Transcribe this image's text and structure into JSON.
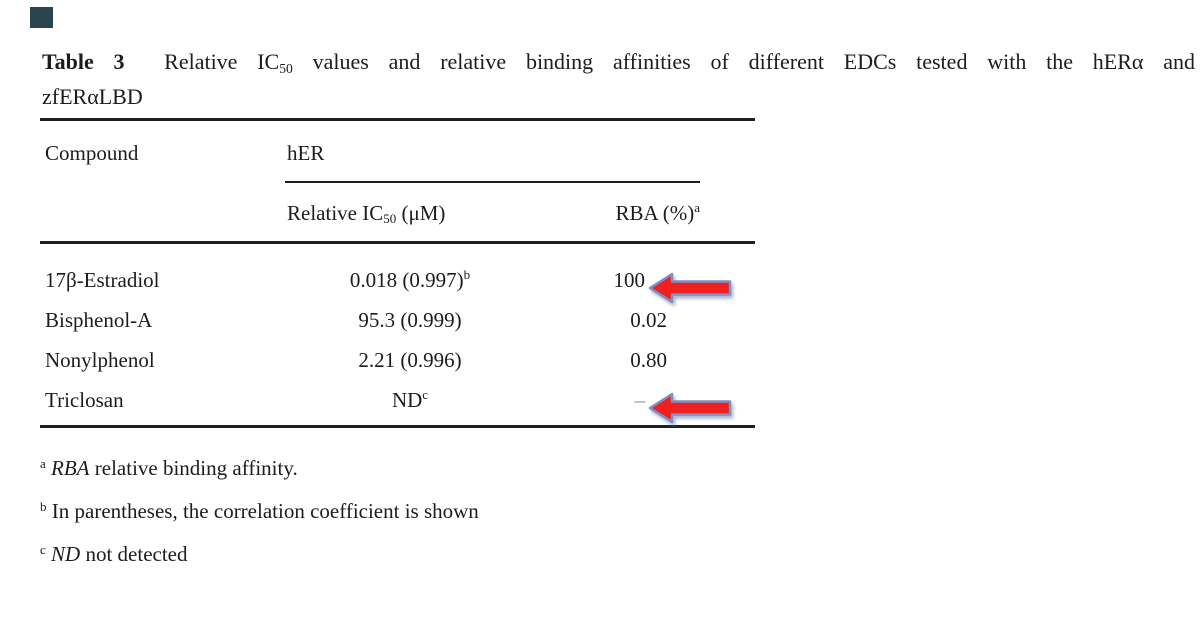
{
  "page": {
    "background": "#ffffff",
    "corner_mark_color": "#2a454d",
    "text_color": "#1c1c1e",
    "rule_color": "#1f1f1f"
  },
  "title": {
    "line1_segments": [
      {
        "t": "Table 3",
        "b": true
      },
      {
        "t": "  Relative IC"
      },
      {
        "t": "50",
        "sub": true
      },
      {
        "t": " values and relative binding affinities of different EDCs tested with the hERα and"
      }
    ],
    "line2_segments": [
      {
        "t": "zfERαLBD"
      }
    ]
  },
  "table": {
    "compound_header": "Compound",
    "group_header": "hER",
    "ic50_header_segments": [
      {
        "t": "Relative IC"
      },
      {
        "t": "50",
        "sub": true
      },
      {
        "t": " (μM)"
      }
    ],
    "rba_header_segments": [
      {
        "t": "RBA (%)"
      },
      {
        "t": "a",
        "sup": true
      }
    ],
    "rows": [
      {
        "compound": "17β-Estradiol",
        "ic50_segments": [
          {
            "t": "0.018 (0.997)"
          },
          {
            "t": "b",
            "sup": true
          }
        ],
        "rba_segments": [
          {
            "t": "100"
          }
        ],
        "arrow": true
      },
      {
        "compound": "Bisphenol-A",
        "ic50_segments": [
          {
            "t": "95.3 (0.999)"
          }
        ],
        "rba_segments": [
          {
            "t": "0.02"
          }
        ],
        "arrow": false
      },
      {
        "compound": "Nonylphenol",
        "ic50_segments": [
          {
            "t": "2.21 (0.996)"
          }
        ],
        "rba_segments": [
          {
            "t": "0.80"
          }
        ],
        "arrow": false
      },
      {
        "compound": "Triclosan",
        "ic50_segments": [
          {
            "t": "ND"
          },
          {
            "t": "c",
            "sup": true
          }
        ],
        "rba_segments": [
          {
            "t": "–",
            "muted": true
          }
        ],
        "arrow": true
      }
    ]
  },
  "footnotes": [
    [
      {
        "t": "a",
        "sup": true
      },
      {
        "t": " "
      },
      {
        "t": "RBA",
        "i": true
      },
      {
        "t": " relative binding affinity."
      }
    ],
    [
      {
        "t": "b",
        "sup": true
      },
      {
        "t": " In parentheses, the correlation coefficient is shown"
      }
    ],
    [
      {
        "t": "c",
        "sup": true
      },
      {
        "t": " "
      },
      {
        "t": "ND",
        "i": true
      },
      {
        "t": " not detected"
      }
    ]
  ],
  "annotations": {
    "arrow_fill": "#ee2020",
    "arrow_outline": "#7d90c4"
  }
}
